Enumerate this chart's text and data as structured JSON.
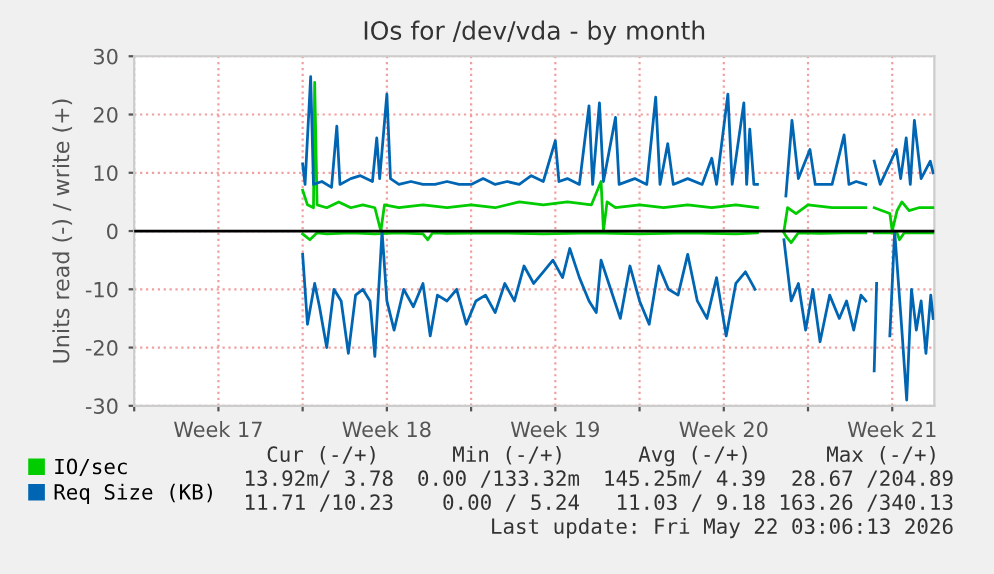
{
  "chart_data": {
    "type": "line",
    "title": "IOs for /dev/vda - by month",
    "ylabel": "Units read (-) / write (+)",
    "xlim": [
      "2026-04-20T00:00",
      "2026-05-23T06:00"
    ],
    "ylim": [
      -30,
      30
    ],
    "yticks": [
      -30,
      -20,
      -10,
      0,
      10,
      20,
      30
    ],
    "xticks": [
      {
        "value": "2026-04-20T00:00",
        "label": null
      },
      {
        "value": "2026-04-23T12:00",
        "label": "Week 17"
      },
      {
        "value": "2026-04-27T00:00",
        "label": null
      },
      {
        "value": "2026-04-30T12:00",
        "label": "Week 18"
      },
      {
        "value": "2026-05-04T00:00",
        "label": null
      },
      {
        "value": "2026-05-07T12:00",
        "label": "Week 19"
      },
      {
        "value": "2026-05-11T00:00",
        "label": null
      },
      {
        "value": "2026-05-14T12:00",
        "label": "Week 20"
      },
      {
        "value": "2026-05-18T00:00",
        "label": null
      },
      {
        "value": "2026-05-21T12:00",
        "label": "Week 21"
      }
    ],
    "grid": true,
    "legend": "bottom",
    "line_style": "solid",
    "marker": "none",
    "ref_lines": [
      {
        "axis": "y",
        "value": 0,
        "color": "#000000"
      }
    ],
    "series": [
      {
        "name": "IO/sec",
        "color": "#00cc00",
        "x": [
          "2026-04-27T00:00",
          "2026-04-27T04:48",
          "2026-04-27T10:48",
          "2026-04-27T12:00",
          "2026-04-27T14:24",
          "2026-04-28T00:00",
          "2026-04-28T12:00",
          "2026-04-29T00:00",
          "2026-04-29T12:00",
          "2026-04-30T00:00",
          "2026-04-30T06:00",
          "2026-04-30T09:36",
          "2026-05-01T00:00",
          "2026-05-02T00:00",
          "2026-05-03T00:00",
          "2026-05-04T00:00",
          "2026-05-05T00:00",
          "2026-05-06T00:00",
          "2026-05-07T00:00",
          "2026-05-08T00:00",
          "2026-05-09T00:00",
          "2026-05-09T09:36",
          "2026-05-09T12:00",
          "2026-05-09T15:36",
          "2026-05-10T00:00",
          "2026-05-11T00:00",
          "2026-05-12T00:00",
          "2026-05-13T00:00",
          "2026-05-14T00:00",
          "2026-05-15T00:00",
          "2026-05-15T21:36",
          "2026-05-16T07:12",
          "2026-05-17T00:00",
          "2026-05-17T03:36",
          "2026-05-17T12:00",
          "2026-05-18T00:00",
          "2026-05-19T00:00",
          "2026-05-20T00:00",
          "2026-05-20T09:36",
          "2026-05-20T14:24",
          "2026-05-20T18:00",
          "2026-05-21T09:36",
          "2026-05-21T12:00",
          "2026-05-21T16:48",
          "2026-05-21T21:36",
          "2026-05-22T04:48",
          "2026-05-22T14:24",
          "2026-05-23T04:48"
        ],
        "values": [
          7,
          4.5,
          4,
          25.5,
          4.5,
          4,
          5,
          4,
          4.5,
          4,
          0,
          4.5,
          4,
          4.5,
          4,
          4.5,
          4,
          5,
          4.5,
          5,
          4.5,
          8.5,
          0,
          5,
          4,
          4.5,
          4,
          4.5,
          4,
          4.5,
          4,
          null,
          0,
          4,
          3,
          4.5,
          4,
          4,
          4,
          null,
          4,
          3,
          0,
          3.5,
          5,
          3.5,
          4,
          4
        ]
      },
      {
        "color": "#00cc00",
        "x": [
          "2026-04-27T00:00",
          "2026-04-27T07:12",
          "2026-04-27T14:24",
          "2026-04-28T00:00",
          "2026-04-29T00:00",
          "2026-04-30T00:00",
          "2026-05-01T00:00",
          "2026-05-02T00:00",
          "2026-05-02T04:48",
          "2026-05-02T09:36",
          "2026-05-03T00:00",
          "2026-05-05T00:00",
          "2026-05-07T00:00",
          "2026-05-09T00:00",
          "2026-05-11T00:00",
          "2026-05-13T00:00",
          "2026-05-15T00:00",
          "2026-05-15T21:36",
          "2026-05-16T07:12",
          "2026-05-17T00:00",
          "2026-05-17T02:24",
          "2026-05-17T07:12",
          "2026-05-17T14:24",
          "2026-05-18T12:00",
          "2026-05-19T12:00",
          "2026-05-20T09:36",
          "2026-05-20T14:24",
          "2026-05-20T18:00",
          "2026-05-21T09:36",
          "2026-05-21T16:48",
          "2026-05-21T19:12",
          "2026-05-22T00:00",
          "2026-05-23T04:48"
        ],
        "values": [
          -0.5,
          -1.5,
          -0.3,
          -0.5,
          -0.3,
          -0.5,
          -0.3,
          -0.5,
          -1.5,
          -0.3,
          -0.4,
          -0.3,
          -0.5,
          -0.3,
          -0.5,
          -0.3,
          -0.5,
          -0.3,
          null,
          -0.3,
          -1,
          -2,
          -0.3,
          -0.4,
          -0.3,
          -0.3,
          null,
          -0.3,
          -0.3,
          -0.3,
          -1.5,
          -0.3,
          -0.3
        ]
      },
      {
        "name": "Req Size (KB)",
        "color": "#0066b3",
        "x": [
          "2026-04-27T00:00",
          "2026-04-27T02:24",
          "2026-04-27T08:00",
          "2026-04-27T10:48",
          "2026-04-27T19:12",
          "2026-04-28T04:48",
          "2026-04-28T10:05",
          "2026-04-28T13:12",
          "2026-04-29T00:00",
          "2026-04-29T09:36",
          "2026-04-29T21:36",
          "2026-04-30T01:55",
          "2026-04-30T04:48",
          "2026-04-30T12:00",
          "2026-04-30T15:36",
          "2026-05-01T00:00",
          "2026-05-01T12:00",
          "2026-05-02T00:00",
          "2026-05-02T12:00",
          "2026-05-03T00:00",
          "2026-05-03T12:00",
          "2026-05-04T00:00",
          "2026-05-04T12:00",
          "2026-05-05T00:00",
          "2026-05-05T12:00",
          "2026-05-06T00:00",
          "2026-05-06T12:00",
          "2026-05-07T00:00",
          "2026-05-07T12:00",
          "2026-05-07T15:36",
          "2026-05-08T00:00",
          "2026-05-08T12:00",
          "2026-05-08T21:36",
          "2026-05-09T01:12",
          "2026-05-09T08:00",
          "2026-05-09T12:00",
          "2026-05-10T00:00",
          "2026-05-10T03:36",
          "2026-05-10T19:12",
          "2026-05-11T07:12",
          "2026-05-11T16:05",
          "2026-05-11T20:24",
          "2026-05-12T04:05",
          "2026-05-12T09:36",
          "2026-05-13T00:00",
          "2026-05-13T14:24",
          "2026-05-14T00:00",
          "2026-05-14T04:48",
          "2026-05-14T16:05",
          "2026-05-14T20:24",
          "2026-05-15T08:00",
          "2026-05-15T10:48",
          "2026-05-15T13:55",
          "2026-05-15T18:00",
          "2026-05-15T21:36",
          "2026-05-16T07:12",
          "2026-05-17T01:55",
          "2026-05-17T08:00",
          "2026-05-17T14:24",
          "2026-05-18T01:55",
          "2026-05-18T07:12",
          "2026-05-18T12:00",
          "2026-05-19T00:00",
          "2026-05-19T12:00",
          "2026-05-19T16:48",
          "2026-05-20T00:00",
          "2026-05-20T09:36",
          "2026-05-20T14:24",
          "2026-05-20T18:00",
          "2026-05-21T00:00",
          "2026-05-21T16:05",
          "2026-05-21T20:24",
          "2026-05-22T01:55",
          "2026-05-22T06:00",
          "2026-05-22T10:05",
          "2026-05-22T16:48",
          "2026-05-23T01:55",
          "2026-05-23T04:48"
        ],
        "values": [
          11.5,
          8,
          26.5,
          8,
          8.5,
          7.5,
          18,
          8,
          9,
          9.5,
          8.5,
          16,
          9,
          23.5,
          9,
          8,
          8.5,
          8,
          8,
          8.5,
          8,
          8,
          9,
          8,
          8.5,
          8,
          9.5,
          8.5,
          15.5,
          8.5,
          9,
          8,
          21.5,
          8,
          22,
          8.5,
          19.5,
          8,
          9,
          8,
          23,
          8,
          15,
          8,
          9,
          8,
          12.5,
          8,
          23.5,
          8,
          22,
          8,
          17.5,
          8,
          8,
          null,
          6,
          19,
          9,
          14,
          8,
          8,
          8,
          16.5,
          8,
          8.5,
          8,
          null,
          12,
          8,
          14,
          9,
          16,
          8,
          19,
          9,
          12,
          10
        ]
      },
      {
        "color": "#0066b3",
        "x": [
          "2026-04-27T00:00",
          "2026-04-27T04:48",
          "2026-04-27T12:00",
          "2026-04-27T16:48",
          "2026-04-28T00:00",
          "2026-04-28T07:12",
          "2026-04-28T14:24",
          "2026-04-28T21:36",
          "2026-04-29T04:48",
          "2026-04-29T12:00",
          "2026-04-29T19:12",
          "2026-04-30T00:00",
          "2026-04-30T07:12",
          "2026-04-30T12:00",
          "2026-04-30T19:12",
          "2026-05-01T04:48",
          "2026-05-01T14:24",
          "2026-05-02T00:00",
          "2026-05-02T07:12",
          "2026-05-02T14:24",
          "2026-05-03T00:00",
          "2026-05-03T09:36",
          "2026-05-03T19:12",
          "2026-05-04T04:48",
          "2026-05-04T14:24",
          "2026-05-05T00:00",
          "2026-05-05T09:36",
          "2026-05-05T19:12",
          "2026-05-06T04:48",
          "2026-05-06T14:24",
          "2026-05-07T00:00",
          "2026-05-07T09:36",
          "2026-05-07T19:12",
          "2026-05-08T02:24",
          "2026-05-08T12:00",
          "2026-05-08T21:36",
          "2026-05-09T04:48",
          "2026-05-09T09:36",
          "2026-05-09T19:12",
          "2026-05-10T04:48",
          "2026-05-10T14:24",
          "2026-05-11T00:00",
          "2026-05-11T09:36",
          "2026-05-11T19:12",
          "2026-05-12T04:48",
          "2026-05-12T14:24",
          "2026-05-13T00:00",
          "2026-05-13T09:36",
          "2026-05-13T19:12",
          "2026-05-14T04:48",
          "2026-05-14T14:24",
          "2026-05-15T00:00",
          "2026-05-15T09:36",
          "2026-05-15T19:12",
          "2026-05-16T07:12",
          "2026-05-17T00:00",
          "2026-05-17T07:12",
          "2026-05-17T14:24",
          "2026-05-17T21:36",
          "2026-05-18T04:48",
          "2026-05-18T12:00",
          "2026-05-18T21:36",
          "2026-05-19T07:12",
          "2026-05-19T14:24",
          "2026-05-19T21:36",
          "2026-05-20T04:48",
          "2026-05-20T09:36",
          "2026-05-20T14:24",
          "2026-05-20T18:00",
          "2026-05-20T20:24",
          "2026-05-20T22:48",
          "2026-05-21T09:36",
          "2026-05-21T14:24",
          "2026-05-21T21:36",
          "2026-05-22T02:24",
          "2026-05-22T07:12",
          "2026-05-22T12:00",
          "2026-05-22T16:48",
          "2026-05-22T21:36",
          "2026-05-23T02:24",
          "2026-05-23T04:48"
        ],
        "values": [
          -4,
          -16,
          -9,
          -13,
          -20,
          -10,
          -12,
          -21,
          -11,
          -10,
          -12,
          -21.5,
          0,
          -12,
          -17,
          -10,
          -13,
          -9,
          -18,
          -11,
          -12,
          -10,
          -16,
          -12,
          -11,
          -14,
          -9,
          -12,
          -6,
          -9,
          -7,
          -5,
          -8,
          -3,
          -8,
          -12,
          -14,
          -5,
          -10,
          -15,
          -6,
          -12,
          -16,
          -6,
          -10,
          -11,
          -4,
          -12,
          -15,
          -8,
          -18,
          -9,
          -7,
          -10,
          null,
          -1.5,
          -12,
          -9,
          -17,
          -10,
          -19,
          -11,
          -15,
          -12,
          -17,
          -11,
          -12,
          null,
          -24,
          -9,
          null,
          -18,
          0,
          -17,
          -29,
          -10,
          -17,
          -12,
          -21,
          -11,
          -15
        ]
      }
    ],
    "annotations": [
      "Cur (-/+)",
      "Min (-/+)",
      "Avg (-/+)",
      "Max (-/+)",
      "13.92m/ 3.78",
      "0.00 /133.32m",
      "145.25m/ 4.39",
      "28.67 /204.89",
      "11.71 /10.23",
      "0.00 / 5.24",
      "11.03 / 9.18",
      "163.26 /340.13",
      "Last update: Fri May 22 03:06:13 2026"
    ]
  }
}
